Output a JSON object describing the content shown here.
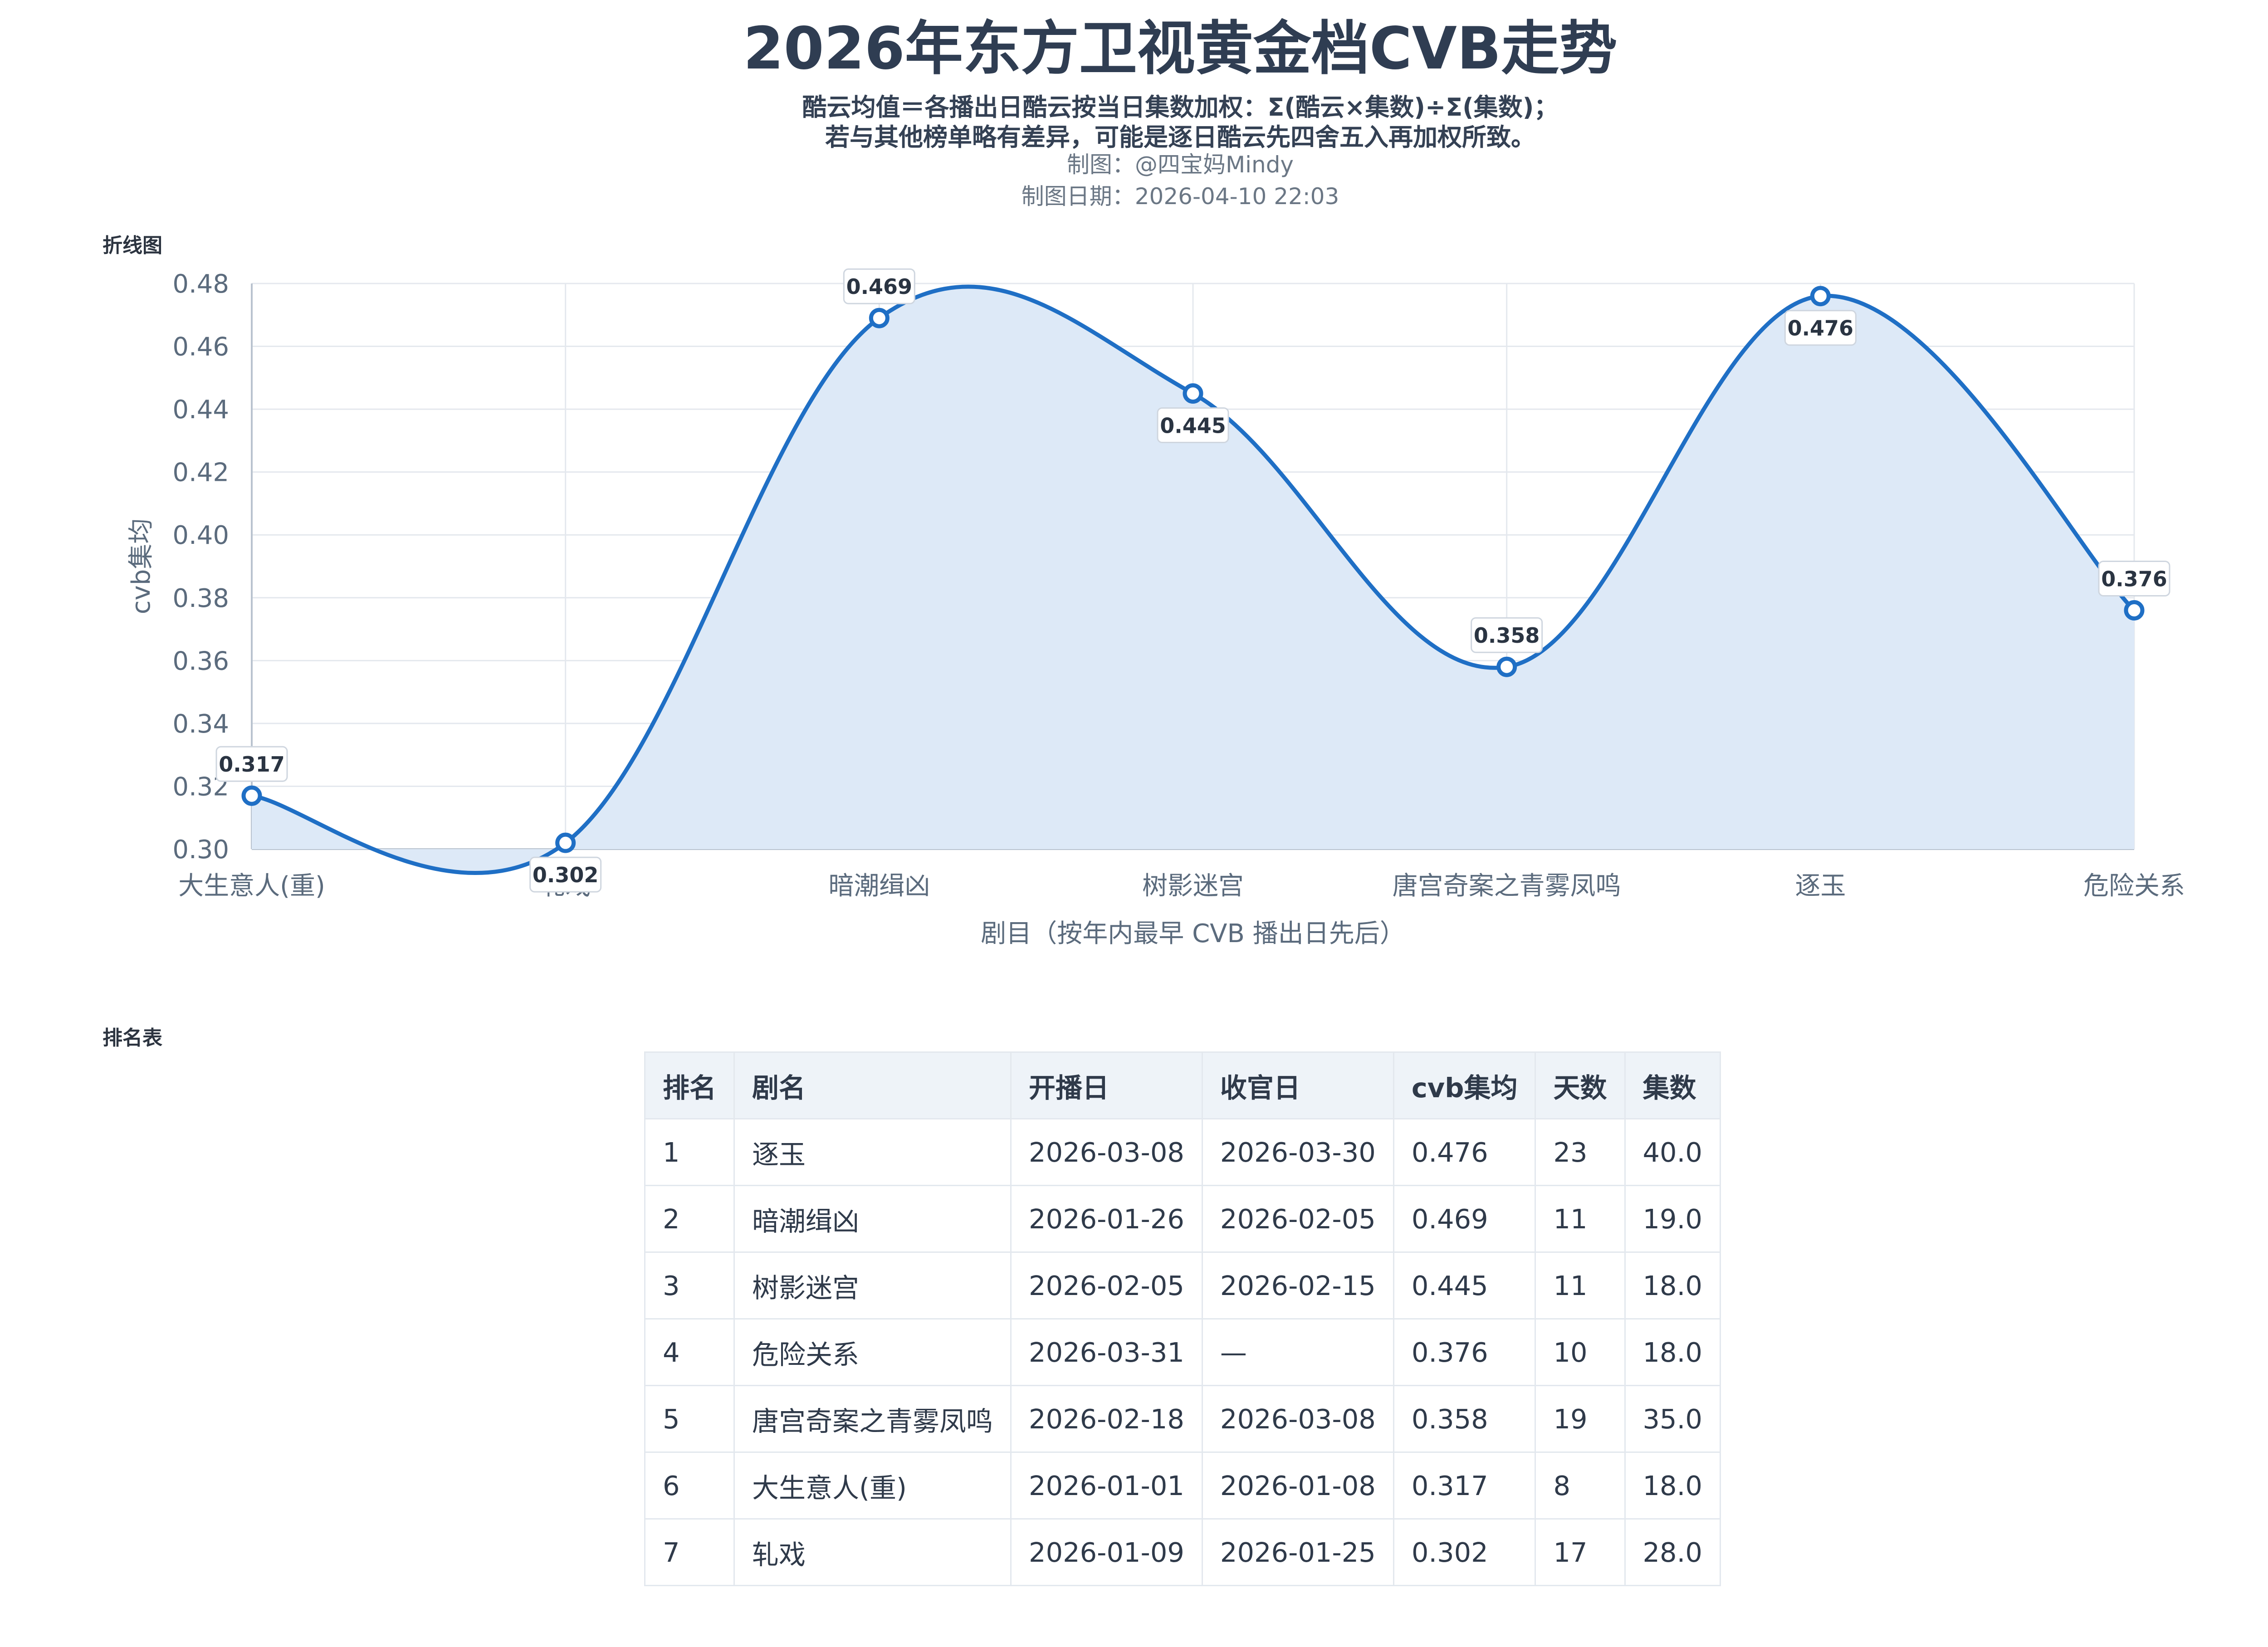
{
  "header": {
    "title": "2026年东方卫视黄金档CVB走势",
    "subtitle_line1": "酷云均值＝各播出日酷云按当日集数加权：Σ(酷云×集数)÷Σ(集数)；",
    "subtitle_line2": "若与其他榜单略有差异，可能是逐日酷云先四舍五入再加权所致。",
    "author": "制图：@四宝妈Mindy",
    "date": "制图日期：2026-04-10 22:03"
  },
  "sections": {
    "chart_label": "折线图",
    "table_label": "排名表"
  },
  "colors": {
    "line": "#1f6fc5",
    "area": "#dde9f7",
    "grid": "#e4e8ee",
    "axis_text": "#5b6b7d"
  },
  "chart_data": {
    "type": "line",
    "smooth": true,
    "area_fill": true,
    "categories": [
      "大生意人(重)",
      "轧戏",
      "暗潮缉凶",
      "树影迷宫",
      "唐宫奇案之青雾凤鸣",
      "逐玉",
      "危险关系"
    ],
    "series": [
      {
        "values": [
          0.317,
          0.302,
          0.469,
          0.445,
          0.358,
          0.476,
          0.376
        ]
      }
    ],
    "data_labels": [
      "0.317",
      "0.302",
      "0.469",
      "0.445",
      "0.358",
      "0.476",
      "0.376"
    ],
    "label_position": [
      "above",
      "below",
      "above",
      "below",
      "above",
      "below",
      "above"
    ],
    "ylim": [
      0.3,
      0.48
    ],
    "yticks": [
      "0.30",
      "0.32",
      "0.34",
      "0.36",
      "0.38",
      "0.40",
      "0.42",
      "0.44",
      "0.46",
      "0.48"
    ],
    "xlabel": "剧目（按年内最早 CVB 播出日先后）",
    "ylabel": "cvb集均",
    "grid": true
  },
  "table": {
    "headers": [
      "排名",
      "剧名",
      "开播日",
      "收官日",
      "cvb集均",
      "天数",
      "集数"
    ],
    "rows": [
      [
        "1",
        "逐玉",
        "2026-03-08",
        "2026-03-30",
        "0.476",
        "23",
        "40.0"
      ],
      [
        "2",
        "暗潮缉凶",
        "2026-01-26",
        "2026-02-05",
        "0.469",
        "11",
        "19.0"
      ],
      [
        "3",
        "树影迷宫",
        "2026-02-05",
        "2026-02-15",
        "0.445",
        "11",
        "18.0"
      ],
      [
        "4",
        "危险关系",
        "2026-03-31",
        "—",
        "0.376",
        "10",
        "18.0"
      ],
      [
        "5",
        "唐宫奇案之青雾凤鸣",
        "2026-02-18",
        "2026-03-08",
        "0.358",
        "19",
        "35.0"
      ],
      [
        "6",
        "大生意人(重)",
        "2026-01-01",
        "2026-01-08",
        "0.317",
        "8",
        "18.0"
      ],
      [
        "7",
        "轧戏",
        "2026-01-09",
        "2026-01-25",
        "0.302",
        "17",
        "28.0"
      ]
    ]
  }
}
